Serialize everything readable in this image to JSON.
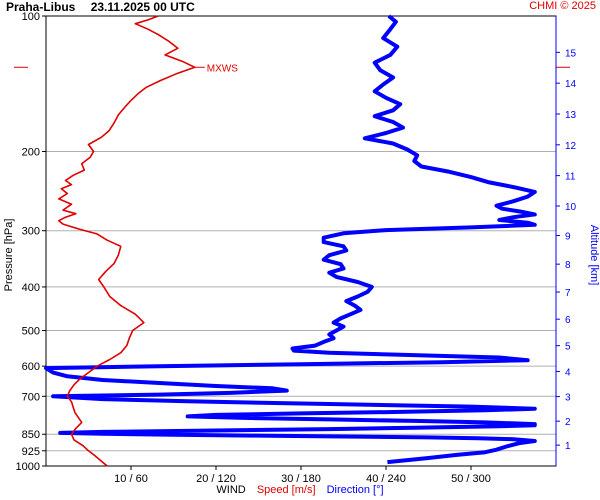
{
  "header": {
    "station": "Praha-Libus",
    "datetime": "23.11.2025 00 UTC",
    "copyright": "CHMI © 2025"
  },
  "chart_data": {
    "type": "line",
    "title": "Praha-Libus   23.11.2025 00 UTC",
    "ylabel": "Pressure [hPa]",
    "y2label": "Altitude [km]",
    "xlabel_parts": {
      "wind": "WIND",
      "speed": "Speed [m/s]",
      "direction": "Direction [°]"
    },
    "pressure_ticks": [
      100,
      200,
      300,
      400,
      500,
      600,
      700,
      850,
      925,
      1000
    ],
    "ylim_hpa": [
      100,
      1000
    ],
    "y_scale": "log",
    "altitude_ticks_km": [
      1,
      2,
      3,
      4,
      5,
      6,
      7,
      8,
      9,
      10,
      11,
      12,
      13,
      14,
      15
    ],
    "x_ticks": [
      "10 / 60",
      "20 / 120",
      "30 / 180",
      "40 / 240",
      "50 / 300"
    ],
    "speed_range": [
      0,
      60
    ],
    "direction_range": [
      0,
      360
    ],
    "grid": true,
    "annotations": [
      {
        "text": "MXWS",
        "pressure": 130,
        "speed": 17.5
      }
    ],
    "series": [
      {
        "name": "Speed [m/s]",
        "color": "#e00000",
        "points": [
          {
            "p": 1000,
            "v": 7.2
          },
          {
            "p": 975,
            "v": 6.5
          },
          {
            "p": 950,
            "v": 5.8
          },
          {
            "p": 925,
            "v": 5.0
          },
          {
            "p": 900,
            "v": 4.3
          },
          {
            "p": 875,
            "v": 3.3
          },
          {
            "p": 850,
            "v": 3.0
          },
          {
            "p": 825,
            "v": 3.5
          },
          {
            "p": 800,
            "v": 4.2
          },
          {
            "p": 780,
            "v": 3.8
          },
          {
            "p": 760,
            "v": 3.4
          },
          {
            "p": 740,
            "v": 3.2
          },
          {
            "p": 720,
            "v": 3.0
          },
          {
            "p": 700,
            "v": 2.5
          },
          {
            "p": 680,
            "v": 2.8
          },
          {
            "p": 660,
            "v": 3.3
          },
          {
            "p": 640,
            "v": 4.0
          },
          {
            "p": 620,
            "v": 5.0
          },
          {
            "p": 600,
            "v": 6.0
          },
          {
            "p": 580,
            "v": 7.5
          },
          {
            "p": 560,
            "v": 8.8
          },
          {
            "p": 540,
            "v": 9.5
          },
          {
            "p": 520,
            "v": 9.8
          },
          {
            "p": 500,
            "v": 10.2
          },
          {
            "p": 480,
            "v": 11.5
          },
          {
            "p": 460,
            "v": 10.5
          },
          {
            "p": 440,
            "v": 8.8
          },
          {
            "p": 420,
            "v": 7.5
          },
          {
            "p": 400,
            "v": 6.8
          },
          {
            "p": 385,
            "v": 6.2
          },
          {
            "p": 370,
            "v": 7.0
          },
          {
            "p": 355,
            "v": 8.0
          },
          {
            "p": 340,
            "v": 8.5
          },
          {
            "p": 325,
            "v": 8.8
          },
          {
            "p": 315,
            "v": 7.2
          },
          {
            "p": 305,
            "v": 6.0
          },
          {
            "p": 298,
            "v": 4.0
          },
          {
            "p": 290,
            "v": 2.0
          },
          {
            "p": 285,
            "v": 1.5
          },
          {
            "p": 280,
            "v": 2.3
          },
          {
            "p": 275,
            "v": 3.5
          },
          {
            "p": 270,
            "v": 2.0
          },
          {
            "p": 262,
            "v": 3.0
          },
          {
            "p": 255,
            "v": 1.5
          },
          {
            "p": 248,
            "v": 2.5
          },
          {
            "p": 242,
            "v": 1.8
          },
          {
            "p": 237,
            "v": 3.0
          },
          {
            "p": 232,
            "v": 2.3
          },
          {
            "p": 226,
            "v": 3.2
          },
          {
            "p": 220,
            "v": 4.5
          },
          {
            "p": 213,
            "v": 4.2
          },
          {
            "p": 206,
            "v": 5.2
          },
          {
            "p": 200,
            "v": 5.6
          },
          {
            "p": 193,
            "v": 5.0
          },
          {
            "p": 186,
            "v": 6.5
          },
          {
            "p": 180,
            "v": 7.4
          },
          {
            "p": 173,
            "v": 8.0
          },
          {
            "p": 166,
            "v": 8.5
          },
          {
            "p": 160,
            "v": 9.2
          },
          {
            "p": 154,
            "v": 10.0
          },
          {
            "p": 149,
            "v": 10.8
          },
          {
            "p": 144,
            "v": 11.8
          },
          {
            "p": 139,
            "v": 13.5
          },
          {
            "p": 134,
            "v": 15.5
          },
          {
            "p": 130,
            "v": 17.5
          },
          {
            "p": 126,
            "v": 16.0
          },
          {
            "p": 122,
            "v": 14.0
          },
          {
            "p": 118,
            "v": 15.5
          },
          {
            "p": 114,
            "v": 14.5
          },
          {
            "p": 110,
            "v": 13.2
          },
          {
            "p": 107,
            "v": 12.0
          },
          {
            "p": 104,
            "v": 10.5
          },
          {
            "p": 102,
            "v": 12.0
          },
          {
            "p": 100,
            "v": 13.2
          }
        ]
      },
      {
        "name": "Direction [°]",
        "color": "#0000ff",
        "points": [
          {
            "p": 980,
            "d": 241
          },
          {
            "p": 960,
            "d": 270
          },
          {
            "p": 945,
            "d": 290
          },
          {
            "p": 932,
            "d": 310
          },
          {
            "p": 920,
            "d": 318
          },
          {
            "p": 905,
            "d": 325
          },
          {
            "p": 890,
            "d": 334
          },
          {
            "p": 880,
            "d": 345
          },
          {
            "p": 872,
            "d": 330
          },
          {
            "p": 868,
            "d": 305
          },
          {
            "p": 864,
            "d": 270
          },
          {
            "p": 860,
            "d": 210
          },
          {
            "p": 856,
            "d": 150
          },
          {
            "p": 852,
            "d": 90
          },
          {
            "p": 848,
            "d": 40
          },
          {
            "p": 844,
            "d": 10
          },
          {
            "p": 840,
            "d": 40
          },
          {
            "p": 834,
            "d": 120
          },
          {
            "p": 828,
            "d": 200
          },
          {
            "p": 822,
            "d": 260
          },
          {
            "p": 816,
            "d": 320
          },
          {
            "p": 812,
            "d": 345
          },
          {
            "p": 807,
            "d": 345
          },
          {
            "p": 800,
            "d": 310
          },
          {
            "p": 794,
            "d": 260
          },
          {
            "p": 788,
            "d": 200
          },
          {
            "p": 782,
            "d": 140
          },
          {
            "p": 776,
            "d": 100
          },
          {
            "p": 770,
            "d": 120
          },
          {
            "p": 764,
            "d": 180
          },
          {
            "p": 758,
            "d": 250
          },
          {
            "p": 752,
            "d": 310
          },
          {
            "p": 746,
            "d": 345
          },
          {
            "p": 738,
            "d": 300
          },
          {
            "p": 728,
            "d": 200
          },
          {
            "p": 718,
            "d": 100
          },
          {
            "p": 710,
            "d": 40
          },
          {
            "p": 700,
            "d": 5
          },
          {
            "p": 694,
            "d": 80
          },
          {
            "p": 688,
            "d": 130
          },
          {
            "p": 680,
            "d": 170
          },
          {
            "p": 672,
            "d": 160
          },
          {
            "p": 664,
            "d": 120
          },
          {
            "p": 654,
            "d": 80
          },
          {
            "p": 644,
            "d": 40
          },
          {
            "p": 632,
            "d": 15
          },
          {
            "p": 620,
            "d": 5
          },
          {
            "p": 606,
            "d": 0
          },
          {
            "p": 600,
            "d": 80
          },
          {
            "p": 594,
            "d": 180
          },
          {
            "p": 588,
            "d": 280
          },
          {
            "p": 582,
            "d": 340
          },
          {
            "p": 574,
            "d": 320
          },
          {
            "p": 566,
            "d": 250
          },
          {
            "p": 560,
            "d": 200
          },
          {
            "p": 554,
            "d": 175
          },
          {
            "p": 548,
            "d": 174
          },
          {
            "p": 540,
            "d": 190
          },
          {
            "p": 530,
            "d": 196
          },
          {
            "p": 520,
            "d": 203
          },
          {
            "p": 510,
            "d": 200
          },
          {
            "p": 500,
            "d": 205
          },
          {
            "p": 490,
            "d": 210
          },
          {
            "p": 480,
            "d": 203
          },
          {
            "p": 470,
            "d": 208
          },
          {
            "p": 460,
            "d": 215
          },
          {
            "p": 450,
            "d": 222
          },
          {
            "p": 440,
            "d": 218
          },
          {
            "p": 430,
            "d": 212
          },
          {
            "p": 420,
            "d": 220
          },
          {
            "p": 410,
            "d": 227
          },
          {
            "p": 400,
            "d": 230
          },
          {
            "p": 390,
            "d": 220
          },
          {
            "p": 380,
            "d": 205
          },
          {
            "p": 372,
            "d": 200
          },
          {
            "p": 364,
            "d": 210
          },
          {
            "p": 356,
            "d": 208
          },
          {
            "p": 348,
            "d": 196
          },
          {
            "p": 340,
            "d": 200
          },
          {
            "p": 332,
            "d": 212
          },
          {
            "p": 325,
            "d": 210
          },
          {
            "p": 318,
            "d": 196
          },
          {
            "p": 311,
            "d": 196
          },
          {
            "p": 304,
            "d": 210
          },
          {
            "p": 299,
            "d": 240
          },
          {
            "p": 295,
            "d": 300
          },
          {
            "p": 291,
            "d": 345
          },
          {
            "p": 288,
            "d": 340
          },
          {
            "p": 284,
            "d": 320
          },
          {
            "p": 280,
            "d": 330
          },
          {
            "p": 276,
            "d": 345
          },
          {
            "p": 272,
            "d": 335
          },
          {
            "p": 268,
            "d": 322
          },
          {
            "p": 264,
            "d": 318
          },
          {
            "p": 258,
            "d": 330
          },
          {
            "p": 252,
            "d": 340
          },
          {
            "p": 246,
            "d": 345
          },
          {
            "p": 240,
            "d": 330
          },
          {
            "p": 234,
            "d": 312
          },
          {
            "p": 228,
            "d": 300
          },
          {
            "p": 222,
            "d": 285
          },
          {
            "p": 216,
            "d": 265
          },
          {
            "p": 210,
            "d": 260
          },
          {
            "p": 204,
            "d": 262
          },
          {
            "p": 198,
            "d": 255
          },
          {
            "p": 192,
            "d": 245
          },
          {
            "p": 187,
            "d": 225
          },
          {
            "p": 182,
            "d": 240
          },
          {
            "p": 177,
            "d": 252
          },
          {
            "p": 172,
            "d": 245
          },
          {
            "p": 167,
            "d": 232
          },
          {
            "p": 162,
            "d": 245
          },
          {
            "p": 157,
            "d": 250
          },
          {
            "p": 152,
            "d": 240
          },
          {
            "p": 147,
            "d": 232
          },
          {
            "p": 142,
            "d": 238
          },
          {
            "p": 137,
            "d": 245
          },
          {
            "p": 132,
            "d": 236
          },
          {
            "p": 127,
            "d": 232
          },
          {
            "p": 122,
            "d": 243
          },
          {
            "p": 117,
            "d": 248
          },
          {
            "p": 112,
            "d": 238
          },
          {
            "p": 107,
            "d": 243
          },
          {
            "p": 103,
            "d": 247
          },
          {
            "p": 100,
            "d": 242
          }
        ]
      }
    ]
  }
}
